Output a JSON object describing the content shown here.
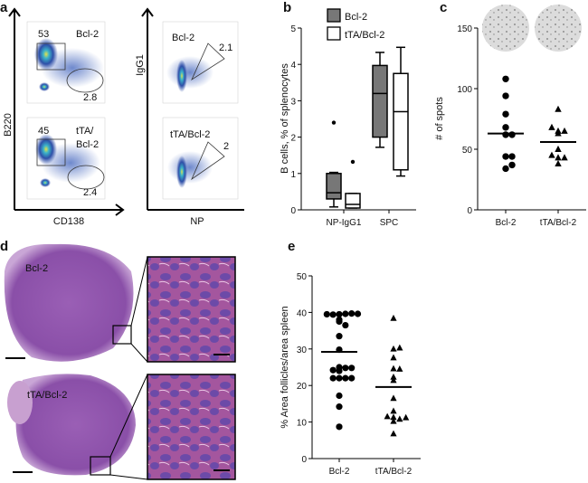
{
  "panel_labels": {
    "a": "a",
    "b": "b",
    "c": "c",
    "d": "d",
    "e": "e"
  },
  "panel_a": {
    "left_ylabel": "B220",
    "left_xlabel": "CD138",
    "right_ylabel": "IgG1",
    "right_xlabel": "NP",
    "plots": [
      {
        "genotype": "Bcl-2",
        "gate_b_pct": "53",
        "gate_pc_pct": "2.8"
      },
      {
        "genotype_line1": "tTA/",
        "genotype_line2": "Bcl-2",
        "gate_b_pct": "45",
        "gate_pc_pct": "2.4"
      },
      {
        "genotype": "Bcl-2",
        "gate_pct": "2.1"
      },
      {
        "genotype": "tTA/Bcl-2",
        "gate_pct": "2"
      }
    ],
    "colors": {
      "density_low": "#2e4fa8",
      "density_mid": "#3bb3c9",
      "density_high": "#e6e04a"
    }
  },
  "panel_d": {
    "top_label": "Bcl-2",
    "bottom_label": "tTA/Bcl-2",
    "stain_color": "#8a4fa8"
  },
  "chart_data": [
    {
      "id": "b",
      "type": "box",
      "ylabel": "B cells, % of splenocytes",
      "ylim": [
        0,
        5
      ],
      "yticks": [
        "0",
        "1",
        "2",
        "3",
        "4",
        "5"
      ],
      "categories": [
        "NP-IgG1",
        "SPC"
      ],
      "legend": [
        {
          "name": "Bcl-2",
          "color": "#777777"
        },
        {
          "name": "tTA/Bcl-2",
          "color": "#ffffff"
        }
      ],
      "legend_position": "top-left",
      "series": [
        {
          "name": "Bcl-2",
          "boxes": [
            {
              "min": 0.08,
              "q1": 0.3,
              "median": 0.47,
              "q3": 1.0,
              "max": 1.03,
              "outliers": [
                2.4
              ]
            },
            {
              "min": 1.72,
              "q1": 2.0,
              "median": 3.2,
              "q3": 3.97,
              "max": 4.33,
              "outliers": []
            }
          ]
        },
        {
          "name": "tTA/Bcl-2",
          "boxes": [
            {
              "min": 0.05,
              "q1": 0.05,
              "median": 0.15,
              "q3": 0.45,
              "max": 0.45,
              "outliers": [
                1.32
              ]
            },
            {
              "min": 0.93,
              "q1": 1.1,
              "median": 2.7,
              "q3": 3.75,
              "max": 4.47,
              "outliers": []
            }
          ]
        }
      ]
    },
    {
      "id": "c",
      "type": "scatter",
      "ylabel": "# of spots",
      "ylim": [
        0,
        150
      ],
      "yticks": [
        "0",
        "50",
        "100",
        "150"
      ],
      "categories": [
        "Bcl-2",
        "tTA/Bcl-2"
      ],
      "series": [
        {
          "name": "Bcl-2",
          "marker": "circle",
          "values": [
            108,
            94,
            79,
            68,
            62,
            62,
            44,
            44,
            34,
            37
          ],
          "center": 63
        },
        {
          "name": "tTA/Bcl-2",
          "marker": "triangle",
          "values": [
            83,
            65,
            63,
            65,
            68,
            50,
            43,
            38,
            43,
            45
          ],
          "center": 56
        }
      ]
    },
    {
      "id": "e",
      "type": "scatter",
      "ylabel": "% Area  follicles/area spleen",
      "ylim": [
        0,
        50
      ],
      "yticks": [
        "0",
        "10",
        "20",
        "30",
        "40",
        "50"
      ],
      "categories": [
        "Bcl-2",
        "tTA/Bcl-2"
      ],
      "series": [
        {
          "name": "Bcl-2",
          "marker": "circle",
          "values": [
            39.5,
            39.6,
            39.4,
            39.7,
            39.5,
            39.6,
            38,
            37.5,
            36.5,
            33.5,
            29.8,
            24,
            24.8,
            25,
            24.2,
            24.8,
            22,
            22,
            22,
            22,
            17.2,
            14.2,
            8.7
          ],
          "center": 29.2
        },
        {
          "name": "tTA/Bcl-2",
          "marker": "triangle",
          "values": [
            38.4,
            30,
            30.3,
            27.6,
            24.6,
            24.5,
            22.3,
            21.4,
            16.5,
            13,
            11.3,
            10.8,
            10.2,
            11.5,
            11.2,
            6.8
          ],
          "center": 19.6
        }
      ]
    }
  ]
}
